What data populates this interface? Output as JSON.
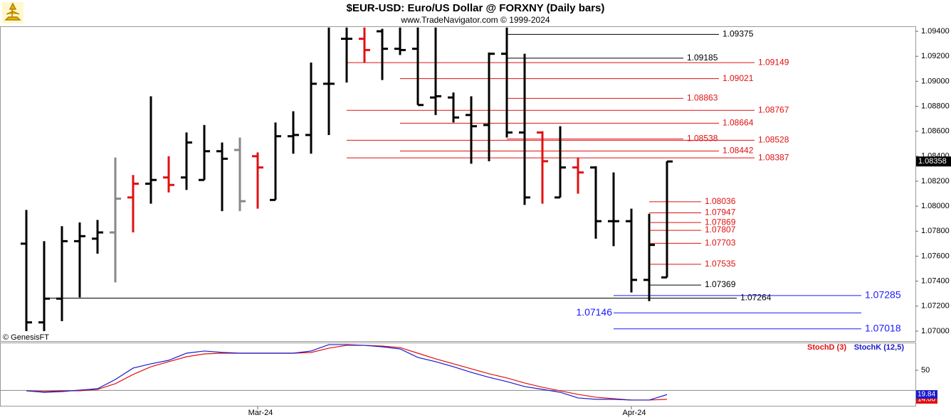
{
  "chart_data": [
    {
      "type": "ohlc",
      "title": "$EUR-USD:  Euro/US Dollar @ FORXNY  (Daily bars)",
      "subtitle": "www.TradeNavigator.com © 1999-2024",
      "source": "© GenesisFT",
      "categories": [
        null,
        null,
        null,
        null,
        null,
        null,
        null,
        null,
        null,
        null,
        null,
        null,
        null,
        "Mar-24",
        null,
        null,
        null,
        null,
        null,
        null,
        null,
        null,
        null,
        null,
        null,
        null,
        null,
        null,
        null,
        null,
        null,
        null,
        null,
        null,
        "Apr-24",
        null,
        null
      ],
      "open": [
        1.077,
        1.0707,
        1.0726,
        1.0772,
        1.0774,
        1.0779,
        1.0807,
        1.0818,
        1.0823,
        1.0823,
        1.0821,
        1.0844,
        1.0845,
        1.084,
        1.0805,
        1.0856,
        1.0857,
        1.0898,
        1.0934,
        1.0934,
        1.094,
        1.0926,
        1.0926,
        1.0887,
        1.0887,
        1.0873,
        1.0865,
        1.0922,
        1.0859,
        1.0859,
        1.0807,
        1.0831,
        1.0831,
        1.0788,
        1.0788,
        1.0741,
        1.0743
      ],
      "high": [
        1.0797,
        1.0772,
        1.0784,
        1.0787,
        1.0789,
        1.0839,
        1.0825,
        1.0888,
        1.084,
        1.0859,
        1.0865,
        1.0851,
        1.0855,
        1.0843,
        1.0867,
        1.0876,
        1.0915,
        1.0943,
        1.0943,
        1.0943,
        1.0942,
        1.0943,
        1.0943,
        1.0943,
        1.0891,
        1.0888,
        1.0923,
        1.0943,
        1.0922,
        1.086,
        1.0864,
        1.0839,
        1.0832,
        1.0827,
        1.0798,
        1.0794,
        1.0836
      ],
      "low": [
        1.07,
        1.07,
        1.0708,
        1.0727,
        1.0762,
        1.0739,
        1.0779,
        1.0802,
        1.0811,
        1.0813,
        1.0821,
        1.0796,
        1.0796,
        1.0798,
        1.0805,
        1.0842,
        1.0842,
        1.0857,
        1.0899,
        1.0915,
        1.0901,
        1.0921,
        1.0881,
        1.0873,
        1.0867,
        1.0834,
        1.0836,
        1.0855,
        1.0801,
        1.0802,
        1.0807,
        1.081,
        1.0774,
        1.0768,
        1.0731,
        1.0724,
        1.0743
      ],
      "close": [
        1.0707,
        1.0726,
        1.0772,
        1.0776,
        1.0779,
        1.0806,
        1.0818,
        1.0821,
        1.0817,
        1.0851,
        1.0844,
        1.0838,
        1.0804,
        1.0831,
        1.0856,
        1.0857,
        1.0898,
        1.0898,
        1.0934,
        1.0925,
        1.0926,
        1.0925,
        1.0881,
        1.0888,
        1.0871,
        1.0864,
        1.0922,
        1.0859,
        1.0807,
        1.0836,
        1.0831,
        1.0827,
        1.0788,
        1.0788,
        1.0741,
        1.0769,
        1.08358
      ],
      "colors": [
        "#000000",
        "#000000",
        "#000000",
        "#000000",
        "#000000",
        "#888888",
        "#e01010",
        "#000000",
        "#e01010",
        "#000000",
        "#000000",
        "#000000",
        "#888888",
        "#e01010",
        "#000000",
        "#000000",
        "#000000",
        "#000000",
        "#000000",
        "#e01010",
        "#000000",
        "#000000",
        "#000000",
        "#000000",
        "#000000",
        "#000000",
        "#000000",
        "#000000",
        "#000000",
        "#e01010",
        "#000000",
        "#e01010",
        "#000000",
        "#000000",
        "#000000",
        "#000000",
        "#000000"
      ],
      "ylim": [
        1.0692,
        1.0944
      ],
      "yticks": [
        {
          "value": 1.094,
          "label": "1.09400"
        },
        {
          "value": 1.092,
          "label": "1.09200"
        },
        {
          "value": 1.09,
          "label": "1.09000"
        },
        {
          "value": 1.088,
          "label": "1.08800"
        },
        {
          "value": 1.086,
          "label": "1.08600"
        },
        {
          "value": 1.084,
          "label": "1.08400"
        },
        {
          "value": 1.082,
          "label": "1.08200"
        },
        {
          "value": 1.08,
          "label": "1.08000"
        },
        {
          "value": 1.078,
          "label": "1.07800"
        },
        {
          "value": 1.076,
          "label": "1.07600"
        },
        {
          "value": 1.074,
          "label": "1.07400"
        },
        {
          "value": 1.072,
          "label": "1.07200"
        },
        {
          "value": 1.07,
          "label": "1.07000"
        }
      ],
      "levels": [
        {
          "value": 1.09375,
          "color": "#000000"
        },
        {
          "value": 1.09185,
          "color": "#000000"
        },
        {
          "value": 1.09149,
          "color": "#e01010"
        },
        {
          "value": 1.09021,
          "color": "#e01010"
        },
        {
          "value": 1.08863,
          "color": "#e01010"
        },
        {
          "value": 1.08767,
          "color": "#e01010"
        },
        {
          "value": 1.08664,
          "color": "#e01010"
        },
        {
          "value": 1.08538,
          "color": "#e01010"
        },
        {
          "value": 1.08528,
          "color": "#e01010"
        },
        {
          "value": 1.08442,
          "color": "#e01010"
        },
        {
          "value": 1.08387,
          "color": "#e01010"
        },
        {
          "value": 1.08036,
          "color": "#e01010"
        },
        {
          "value": 1.07947,
          "color": "#e01010"
        },
        {
          "value": 1.07869,
          "color": "#e01010"
        },
        {
          "value": 1.07807,
          "color": "#e01010"
        },
        {
          "value": 1.07703,
          "color": "#e01010"
        },
        {
          "value": 1.07535,
          "color": "#e01010"
        },
        {
          "value": 1.07369,
          "color": "#000000"
        },
        {
          "value": 1.07264,
          "color": "#000000"
        },
        {
          "value": 1.07285,
          "color": "#1a1aff"
        },
        {
          "value": 1.07146,
          "color": "#1a1aff"
        },
        {
          "value": 1.07018,
          "color": "#1a1aff"
        }
      ]
    },
    {
      "type": "line",
      "series": [
        {
          "name": "StochD (3)",
          "color": "#e01010",
          "values": [
            24.5,
            23.6,
            24.5,
            24.5,
            26.3,
            33.3,
            44.7,
            54.3,
            60.5,
            66.6,
            70.1,
            71.0,
            71.0,
            71.0,
            71.0,
            71.0,
            71.9,
            77.2,
            80.7,
            80.7,
            79.8,
            78.0,
            71.0,
            64.0,
            57.9,
            51.7,
            45.6,
            40.4,
            34.2,
            28.9,
            24.5,
            20.1,
            16.6,
            14.8,
            13.1,
            13.1,
            14.0
          ],
          "value_labels": [
            null,
            null,
            null,
            null,
            null,
            null,
            null,
            null,
            null,
            null,
            null,
            null,
            null,
            null,
            null,
            null,
            null,
            null,
            null,
            null,
            null,
            null,
            null,
            null,
            null,
            null,
            null,
            null,
            null,
            null,
            null,
            null,
            null,
            null,
            null,
            null,
            "14.00"
          ]
        },
        {
          "name": "StochK (12,5)",
          "color": "#1a1acc",
          "values": [
            24.5,
            22.7,
            23.6,
            25.4,
            27.1,
            38.5,
            52.6,
            57.9,
            62.2,
            71.0,
            73.7,
            72.0,
            71.0,
            71.0,
            71.0,
            71.0,
            73.7,
            81.6,
            81.6,
            80.7,
            78.9,
            76.3,
            65.8,
            60.5,
            54.3,
            47.3,
            41.2,
            35.9,
            29.8,
            26.3,
            22.7,
            15.7,
            14.0,
            14.0,
            13.1,
            13.1,
            19.84
          ],
          "value_labels": [
            null,
            null,
            null,
            null,
            null,
            null,
            null,
            null,
            null,
            null,
            null,
            null,
            null,
            null,
            null,
            null,
            null,
            null,
            null,
            null,
            null,
            null,
            null,
            null,
            null,
            null,
            null,
            null,
            null,
            null,
            null,
            null,
            null,
            null,
            null,
            null,
            "19.84"
          ]
        }
      ],
      "ylim": [
        6,
        83.3
      ],
      "yticks": [
        50
      ],
      "reference_lines": [
        25
      ]
    }
  ]
}
